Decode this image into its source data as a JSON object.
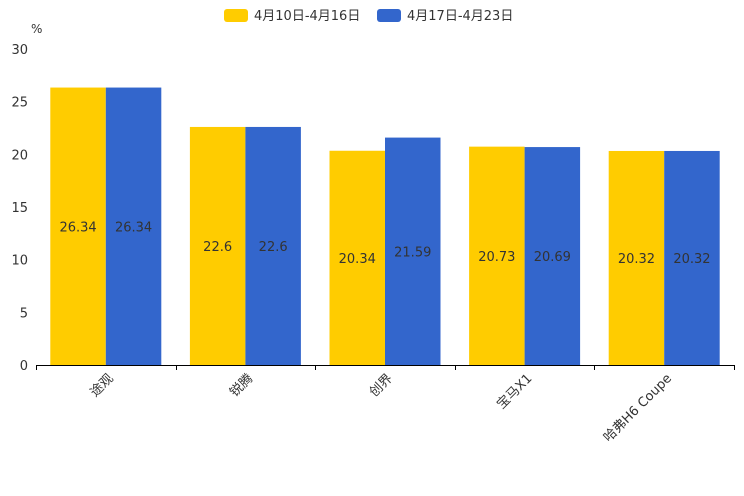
{
  "chart_data": {
    "type": "bar",
    "unit_label": "%",
    "categories": [
      "途观",
      "锐腾",
      "创界",
      "宝马X1",
      "哈弗H6 Coupe"
    ],
    "series": [
      {
        "name": "4月10日-4月16日",
        "color": "#FFCC00",
        "values": [
          26.34,
          22.6,
          20.34,
          20.73,
          20.32
        ]
      },
      {
        "name": "4月17日-4月23日",
        "color": "#3366CC",
        "values": [
          26.34,
          22.6,
          21.59,
          20.69,
          20.32
        ]
      }
    ],
    "ylim": [
      0,
      30
    ],
    "yticks": [
      0,
      5,
      10,
      15,
      20,
      25,
      30
    ],
    "legend_position": "top-center"
  }
}
